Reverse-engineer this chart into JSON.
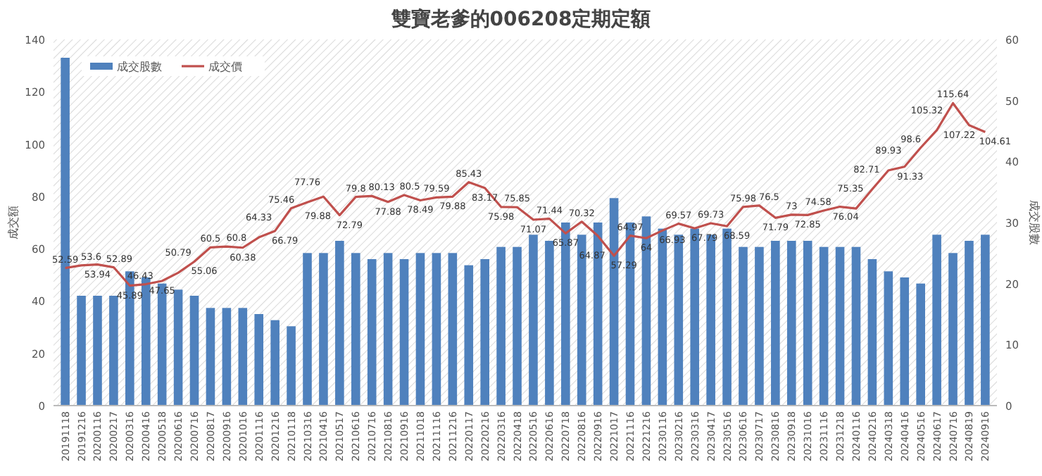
{
  "chart_data": {
    "type": "bar",
    "title": "雙寶老爹的006208定期定額",
    "ylabel": "成交額",
    "y2label": "成交股數",
    "categories": [
      "20191118",
      "20191216",
      "20200116",
      "20200217",
      "20200316",
      "20200416",
      "20200518",
      "20200616",
      "20200716",
      "20200817",
      "20200916",
      "20201016",
      "20201116",
      "20201216",
      "20210118",
      "20210316",
      "20210416",
      "20210517",
      "20210616",
      "20210716",
      "20210816",
      "20210916",
      "20211018",
      "20211116",
      "20211216",
      "20220117",
      "20220216",
      "20220316",
      "20220418",
      "20220516",
      "20220616",
      "20220718",
      "20220816",
      "20220916",
      "20221017",
      "20221116",
      "20221216",
      "20230116",
      "20230216",
      "20230316",
      "20230417",
      "20230516",
      "20230616",
      "20230717",
      "20230816",
      "20230918",
      "20231016",
      "20231116",
      "20231218",
      "20240116",
      "20240216",
      "20240318",
      "20240416",
      "20240516",
      "20240617",
      "20240716",
      "20240819",
      "20240916"
    ],
    "series": [
      {
        "name": "成交股數",
        "axis": "y2",
        "color": "#4f81bd",
        "values": [
          57,
          18,
          18,
          18,
          22,
          21,
          20,
          19,
          18,
          16,
          16,
          16,
          15,
          14,
          13,
          25,
          25,
          27,
          25,
          24,
          25,
          24,
          25,
          25,
          25,
          23,
          24,
          26,
          26,
          28,
          27,
          30,
          28,
          30,
          34,
          30,
          31,
          29,
          28,
          29,
          28,
          29,
          26,
          26,
          27,
          27,
          27,
          26,
          26,
          26,
          24,
          22,
          21,
          20,
          28,
          25,
          27,
          28
        ]
      },
      {
        "name": "成交價",
        "type": "line",
        "color": "#c0504d",
        "data_labels": true,
        "values": [
          52.59,
          53.6,
          53.94,
          52.89,
          45.89,
          46.43,
          47.65,
          50.79,
          55.06,
          60.5,
          60.8,
          60.38,
          64.33,
          66.79,
          75.46,
          77.76,
          79.88,
          72.79,
          79.8,
          80.13,
          77.88,
          80.5,
          78.49,
          79.59,
          79.88,
          85.43,
          83.17,
          75.98,
          75.85,
          71.07,
          71.44,
          65.87,
          70.32,
          64.87,
          57.29,
          64.97,
          64,
          66.93,
          69.57,
          67.79,
          69.73,
          68.59,
          75.98,
          76.5,
          71.79,
          73,
          72.85,
          74.58,
          76.04,
          75.35,
          82.71,
          89.93,
          91.33,
          98.6,
          105.32,
          115.64,
          107.22,
          104.61
        ]
      }
    ],
    "ylim": [
      0,
      140
    ],
    "yticks": [
      0,
      20,
      40,
      60,
      80,
      100,
      120,
      140
    ],
    "y2lim": [
      0,
      60
    ],
    "y2ticks": [
      0,
      10,
      20,
      30,
      40,
      50,
      60
    ],
    "legend": "top left",
    "grid": false,
    "marker": "none",
    "line_style": "solid"
  }
}
